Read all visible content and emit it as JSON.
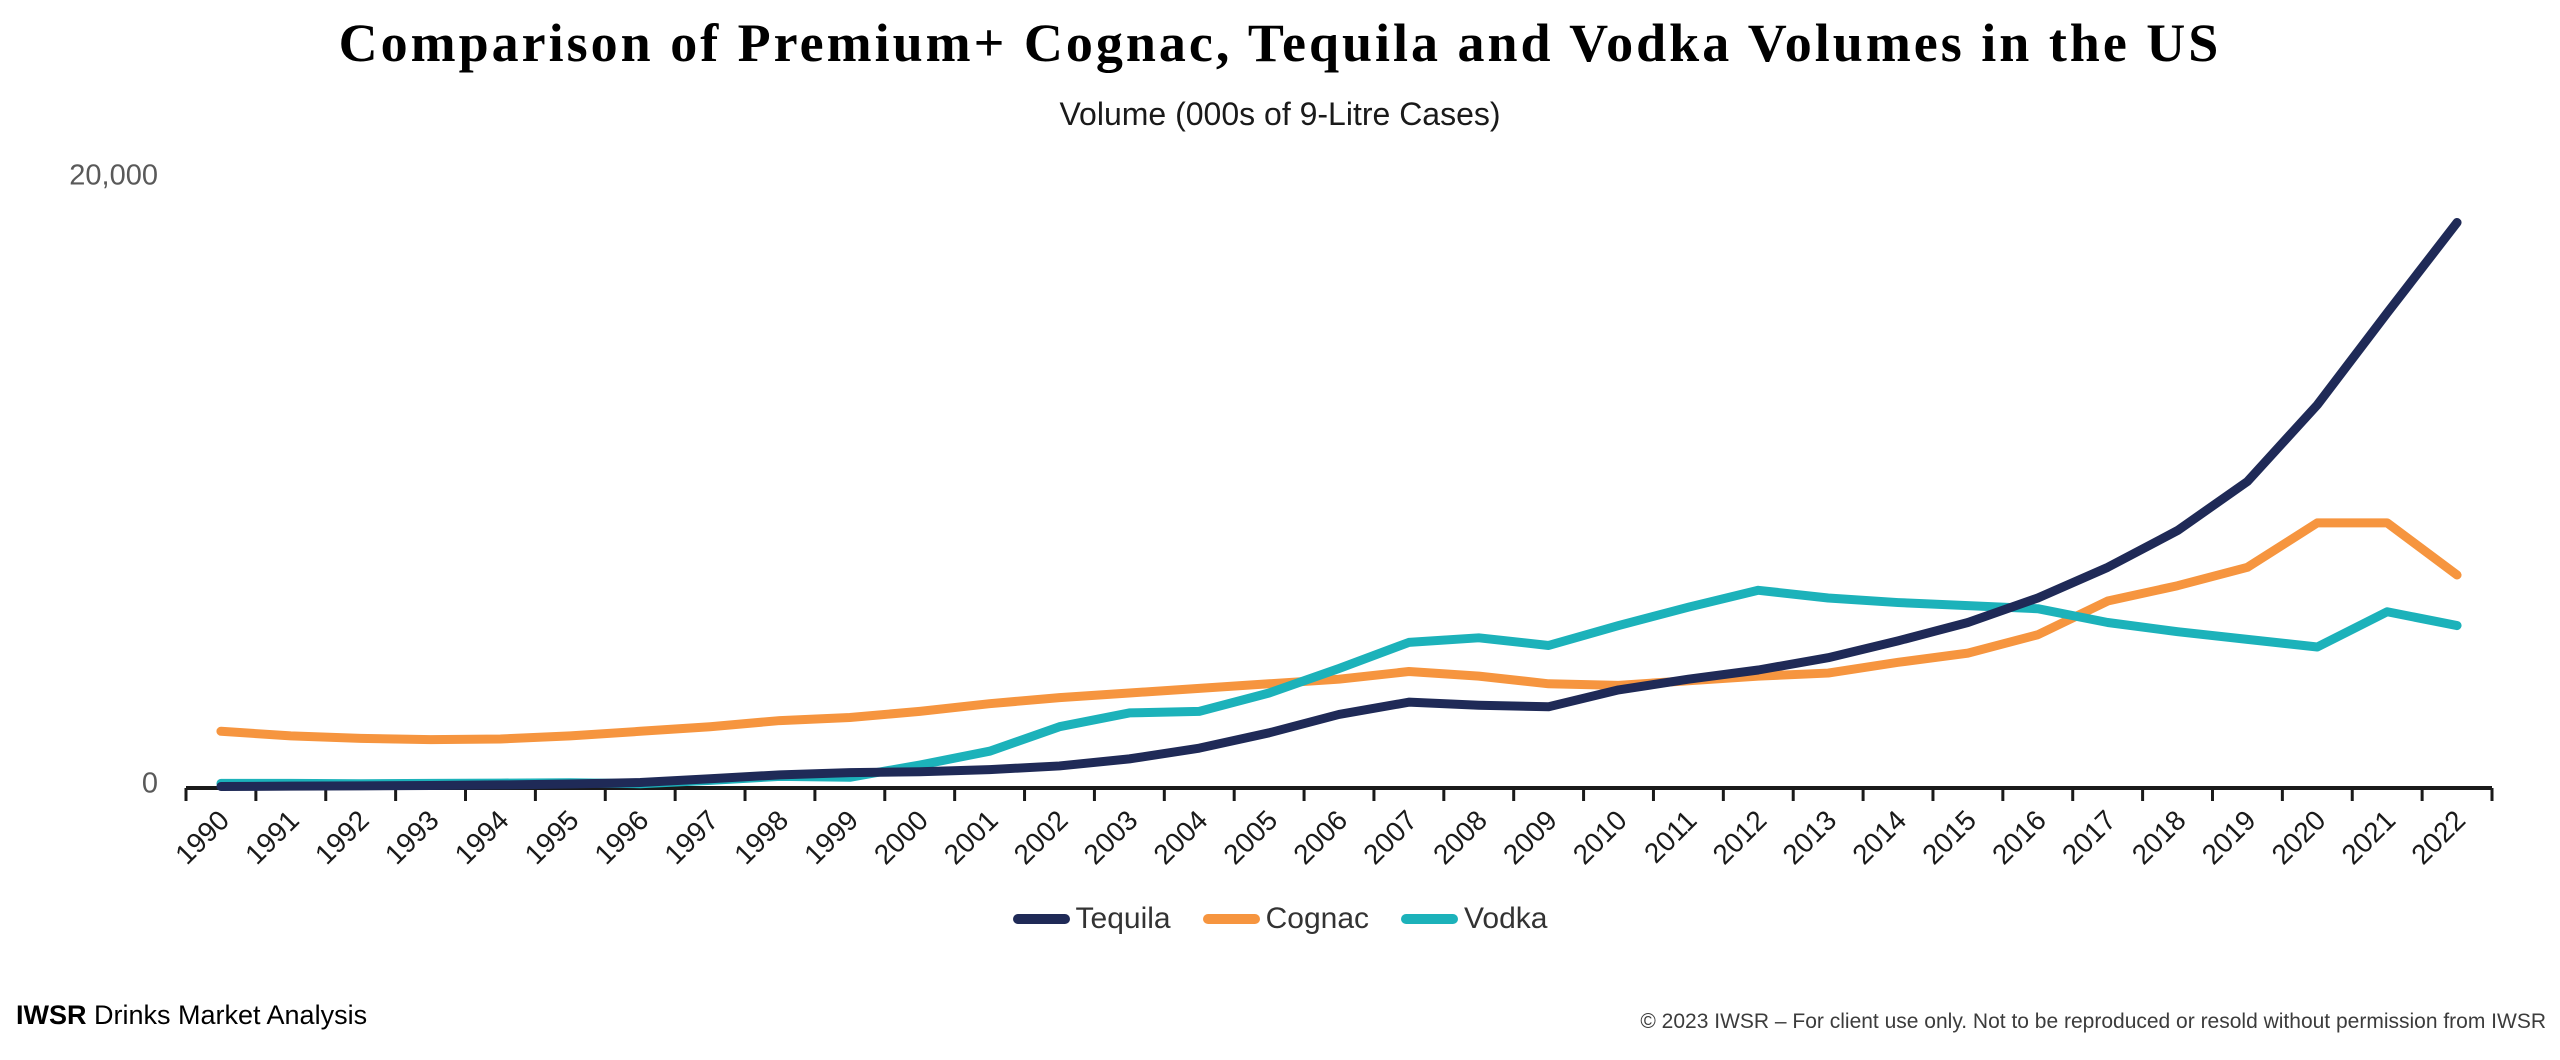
{
  "title": "Comparison of Premium+ Cognac, Tequila and Vodka Volumes in the US",
  "subtitle": "Volume (000s of 9-Litre Cases)",
  "y_axis": {
    "top_label": "20,000",
    "zero_label": "0"
  },
  "legend": [
    {
      "label": "Tequila",
      "color": "#1f2a57"
    },
    {
      "label": "Cognac",
      "color": "#f6953f"
    },
    {
      "label": "Vodka",
      "color": "#1cb2ba"
    }
  ],
  "footer": {
    "brand_bold": "IWSR",
    "brand_rest": " Drinks Market Analysis",
    "copyright": "© 2023 IWSR – For client use only. Not to be reproduced or resold without permission from IWSR"
  },
  "chart_data": {
    "type": "line",
    "title": "Comparison of Premium+ Cognac, Tequila and Vodka Volumes in the US",
    "ylabel": "Volume (000s of 9-Litre Cases)",
    "ylim": [
      0,
      20000
    ],
    "grid": false,
    "legend_position": "bottom",
    "x": [
      1990,
      1991,
      1992,
      1993,
      1994,
      1995,
      1996,
      1997,
      1998,
      1999,
      2000,
      2001,
      2002,
      2003,
      2004,
      2005,
      2006,
      2007,
      2008,
      2009,
      2010,
      2011,
      2012,
      2013,
      2014,
      2015,
      2016,
      2017,
      2018,
      2019,
      2020,
      2021,
      2022
    ],
    "series": [
      {
        "name": "Cognac",
        "color": "#f6953f",
        "values": [
          1850,
          1700,
          1620,
          1580,
          1600,
          1700,
          1850,
          2000,
          2200,
          2300,
          2500,
          2750,
          2950,
          3100,
          3250,
          3400,
          3550,
          3800,
          3650,
          3400,
          3350,
          3500,
          3650,
          3750,
          4100,
          4400,
          5000,
          6100,
          6600,
          7200,
          8650,
          8650,
          6950
        ]
      },
      {
        "name": "Vodka",
        "color": "#1cb2ba",
        "values": [
          150,
          150,
          140,
          150,
          160,
          170,
          140,
          250,
          380,
          350,
          750,
          1200,
          2000,
          2450,
          2500,
          3100,
          3900,
          4750,
          4900,
          4650,
          5300,
          5900,
          6450,
          6200,
          6050,
          5950,
          5850,
          5400,
          5100,
          4850,
          4600,
          5750,
          5300
        ]
      },
      {
        "name": "Tequila",
        "color": "#1f2a57",
        "values": [
          50,
          60,
          70,
          80,
          100,
          130,
          180,
          300,
          430,
          500,
          530,
          600,
          720,
          950,
          1300,
          1800,
          2400,
          2800,
          2700,
          2650,
          3200,
          3550,
          3850,
          4250,
          4800,
          5400,
          6200,
          7200,
          8400,
          10000,
          12500,
          15500,
          18450
        ]
      }
    ]
  }
}
